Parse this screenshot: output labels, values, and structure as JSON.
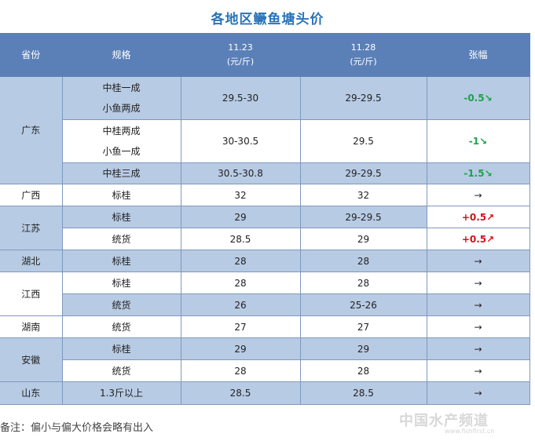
{
  "title": "各地区鳜鱼塘头价",
  "header": {
    "province": "省份",
    "spec": "规格",
    "date1": "11.23",
    "date1_unit": "(元/斤)",
    "date2": "11.28",
    "date2_unit": "(元/斤)",
    "change": "张幅"
  },
  "rows": [
    {
      "province": "广东",
      "spec_lines": [
        "中桂一成",
        "小鱼两成"
      ],
      "p1": "29.5-30",
      "p2": "29-29.5",
      "change": "-0.5↘"
    },
    {
      "spec_lines": [
        "中桂两成",
        "小鱼一成"
      ],
      "p1": "30-30.5",
      "p2": "29.5",
      "change": "-1↘"
    },
    {
      "spec": "中桂三成",
      "p1": "30.5-30.8",
      "p2": "29-29.5",
      "change": "-1.5↘"
    },
    {
      "province": "广西",
      "spec": "标桂",
      "p1": "32",
      "p2": "32",
      "change": "→"
    },
    {
      "province": "江苏",
      "spec": "标桂",
      "p1": "29",
      "p2": "29-29.5",
      "change": "+0.5↗"
    },
    {
      "spec": "统货",
      "p1": "28.5",
      "p2": "29",
      "change": "+0.5↗"
    },
    {
      "province": "湖北",
      "spec": "标桂",
      "p1": "28",
      "p2": "28",
      "change": "→"
    },
    {
      "province": "江西",
      "spec": "标桂",
      "p1": "28",
      "p2": "28",
      "change": "→"
    },
    {
      "spec": "统货",
      "p1": "26",
      "p2": "25-26",
      "change": "→"
    },
    {
      "province": "湖南",
      "spec": "统货",
      "p1": "27",
      "p2": "27",
      "change": "→"
    },
    {
      "province": "安徽",
      "spec": "标桂",
      "p1": "29",
      "p2": "29",
      "change": "→"
    },
    {
      "spec": "统货",
      "p1": "28",
      "p2": "28",
      "change": "→"
    },
    {
      "province": "山东",
      "spec": "1.3斤以上",
      "p1": "28.5",
      "p2": "28.5",
      "change": "→"
    }
  ],
  "note": "备注：偏小与偏大价格会略有出入",
  "watermark": "中国水产频道",
  "watermark_url": "www.fishfirst.cn"
}
